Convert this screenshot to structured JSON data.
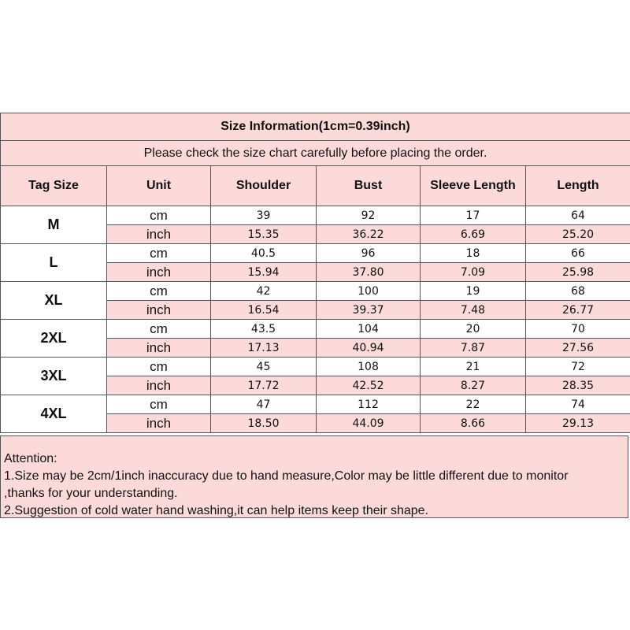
{
  "title": "Size Information(1cm=0.39inch)",
  "subtitle": "Please check the size chart carefully before placing the order.",
  "headers": [
    "Tag Size",
    "Unit",
    "Shoulder",
    "Bust",
    "Sleeve Length",
    "Length"
  ],
  "rows": [
    {
      "size": "M",
      "cm": {
        "unit": "cm",
        "v": [
          "39",
          "92",
          "17",
          "64"
        ]
      },
      "inch": {
        "unit": "inch",
        "v": [
          "15.35",
          "36.22",
          "6.69",
          "25.20"
        ]
      }
    },
    {
      "size": "L",
      "cm": {
        "unit": "cm",
        "v": [
          "40.5",
          "96",
          "18",
          "66"
        ]
      },
      "inch": {
        "unit": "inch",
        "v": [
          "15.94",
          "37.80",
          "7.09",
          "25.98"
        ]
      }
    },
    {
      "size": "XL",
      "cm": {
        "unit": "cm",
        "v": [
          "42",
          "100",
          "19",
          "68"
        ]
      },
      "inch": {
        "unit": "inch",
        "v": [
          "16.54",
          "39.37",
          "7.48",
          "26.77"
        ]
      }
    },
    {
      "size": "2XL",
      "cm": {
        "unit": "cm",
        "v": [
          "43.5",
          "104",
          "20",
          "70"
        ]
      },
      "inch": {
        "unit": "inch",
        "v": [
          "17.13",
          "40.94",
          "7.87",
          "27.56"
        ]
      }
    },
    {
      "size": "3XL",
      "cm": {
        "unit": "cm",
        "v": [
          "45",
          "108",
          "21",
          "72"
        ]
      },
      "inch": {
        "unit": "inch",
        "v": [
          "17.72",
          "42.52",
          "8.27",
          "28.35"
        ]
      }
    },
    {
      "size": "4XL",
      "cm": {
        "unit": "cm",
        "v": [
          "47",
          "112",
          "22",
          "74"
        ]
      },
      "inch": {
        "unit": "inch",
        "v": [
          "18.50",
          "44.09",
          "8.66",
          "29.13"
        ]
      }
    }
  ],
  "attention": [
    "Attention:",
    "1.Size may be 2cm/1inch inaccuracy due to hand measure,Color may be little different due to monitor",
    ",thanks for your understanding.",
    "2.Suggestion of cold water hand washing,it can help items keep their shape."
  ],
  "colors": {
    "pink": "#fcdada",
    "border": "#555555"
  }
}
